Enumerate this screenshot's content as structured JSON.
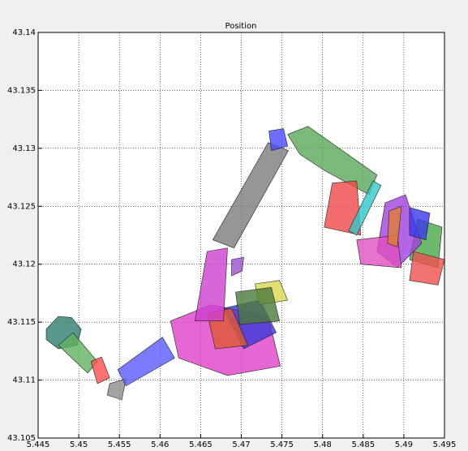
{
  "chart_data": {
    "type": "polygon",
    "title": "Position",
    "xlim": [
      5.445,
      5.495
    ],
    "ylim": [
      43.105,
      43.14
    ],
    "xticks": [
      5.445,
      5.45,
      5.455,
      5.46,
      5.465,
      5.47,
      5.475,
      5.48,
      5.485,
      5.49,
      5.495
    ],
    "yticks": [
      43.105,
      43.11,
      43.115,
      43.12,
      43.125,
      43.13,
      43.135,
      43.14
    ],
    "grid": true,
    "opacity": 0.8,
    "shapes": [
      {
        "color": "#2e7d6e",
        "x": [
          5.446,
          5.4475,
          5.4491,
          5.4503,
          5.4498,
          5.4475,
          5.446
        ],
        "y": [
          43.1144,
          43.1155,
          43.1154,
          43.1144,
          43.113,
          43.1127,
          43.1135
        ]
      },
      {
        "color": "#5fb35f",
        "x": [
          5.4475,
          5.4493,
          5.4523,
          5.4511
        ],
        "y": [
          43.113,
          43.1141,
          43.1116,
          43.1106
        ]
      },
      {
        "color": "#ff4d4d",
        "x": [
          5.4515,
          5.4528,
          5.4538,
          5.4523
        ],
        "y": [
          43.1116,
          43.112,
          43.1102,
          43.1097
        ]
      },
      {
        "color": "#8c8c8c",
        "x": [
          5.4538,
          5.4558,
          5.4553,
          5.4535
        ],
        "y": [
          43.1097,
          43.1101,
          43.1083,
          43.1087
        ]
      },
      {
        "color": "#5a5aff",
        "x": [
          5.4548,
          5.4603,
          5.4618,
          5.4558
        ],
        "y": [
          43.1109,
          43.1137,
          43.1119,
          43.1095
        ]
      },
      {
        "color": "#e040c8",
        "x": [
          5.4613,
          5.4663,
          5.4733,
          5.4748,
          5.4683,
          5.4623
        ],
        "y": [
          43.1151,
          43.1165,
          43.1155,
          43.1112,
          43.1104,
          43.1119
        ]
      },
      {
        "color": "#3a3ad8",
        "x": [
          5.4678,
          5.4723,
          5.4743,
          5.4703
        ],
        "y": [
          43.1162,
          43.1169,
          43.1141,
          43.1127
        ]
      },
      {
        "color": "#d8d850",
        "x": [
          5.4717,
          5.4747,
          5.4757,
          5.4722
        ],
        "y": [
          43.1183,
          43.1186,
          43.1169,
          43.1165
        ]
      },
      {
        "color": "#4a7a3a",
        "x": [
          5.4693,
          5.4737,
          5.4747,
          5.4698
        ],
        "y": [
          43.1176,
          43.118,
          43.1151,
          43.1148
        ]
      },
      {
        "color": "#e05a30",
        "x": [
          5.4658,
          5.4688,
          5.4708,
          5.4668
        ],
        "y": [
          43.1158,
          43.1162,
          43.113,
          43.1127
        ]
      },
      {
        "color": "#d040d0",
        "x": [
          5.4658,
          5.4683,
          5.4678,
          5.4643
        ],
        "y": [
          43.1211,
          43.1214,
          43.1151,
          43.1151
        ]
      },
      {
        "color": "#9a50d0",
        "x": [
          5.4688,
          5.4703,
          5.4701,
          5.4688
        ],
        "y": [
          43.1204,
          43.1206,
          43.1194,
          43.119
        ]
      },
      {
        "color": "#7c7c7c",
        "x": [
          5.4665,
          5.4733,
          5.4758,
          5.4691
        ],
        "y": [
          43.1221,
          43.1305,
          43.1298,
          43.1214
        ]
      },
      {
        "color": "#4848ff",
        "x": [
          5.4734,
          5.4752,
          5.4757,
          5.4737
        ],
        "y": [
          43.1315,
          43.1317,
          43.1302,
          43.1298
        ]
      },
      {
        "color": "#5aa85a",
        "x": [
          5.4757,
          5.4782,
          5.4867,
          5.4857,
          5.4802,
          5.4772
        ],
        "y": [
          43.1312,
          43.1319,
          43.1277,
          43.126,
          43.1281,
          43.1295
        ]
      },
      {
        "color": "#f04848",
        "x": [
          5.4812,
          5.4842,
          5.4847,
          5.4802
        ],
        "y": [
          43.127,
          43.1272,
          43.1225,
          43.1232
        ]
      },
      {
        "color": "#30c8c8",
        "x": [
          5.4862,
          5.4872,
          5.4842,
          5.4832
        ],
        "y": [
          43.1272,
          43.1268,
          43.1225,
          43.1229
        ]
      },
      {
        "color": "#48a848",
        "x": [
          5.4917,
          5.4947,
          5.4942,
          5.4907
        ],
        "y": [
          43.1239,
          43.1232,
          43.1197,
          43.1204
        ]
      },
      {
        "color": "#f05050",
        "x": [
          5.4912,
          5.495,
          5.4942,
          5.4907
        ],
        "y": [
          43.1211,
          43.1204,
          43.1182,
          43.1186
        ]
      },
      {
        "color": "#a040e0",
        "x": [
          5.4877,
          5.4902,
          5.4922,
          5.4892,
          5.4867
        ],
        "y": [
          43.1253,
          43.126,
          43.1218,
          43.1197,
          43.1211
        ]
      },
      {
        "color": "#e050c0",
        "x": [
          5.4842,
          5.4892,
          5.4897,
          5.4847
        ],
        "y": [
          43.1221,
          43.1225,
          43.1197,
          43.12
        ]
      },
      {
        "color": "#3838e8",
        "x": [
          5.4907,
          5.4932,
          5.4927,
          5.4907
        ],
        "y": [
          43.1249,
          43.1244,
          43.1221,
          43.1225
        ]
      },
      {
        "color": "#e08030",
        "x": [
          5.4882,
          5.4897,
          5.4892,
          5.488
        ],
        "y": [
          43.1246,
          43.125,
          43.1215,
          43.1218
        ]
      }
    ]
  }
}
